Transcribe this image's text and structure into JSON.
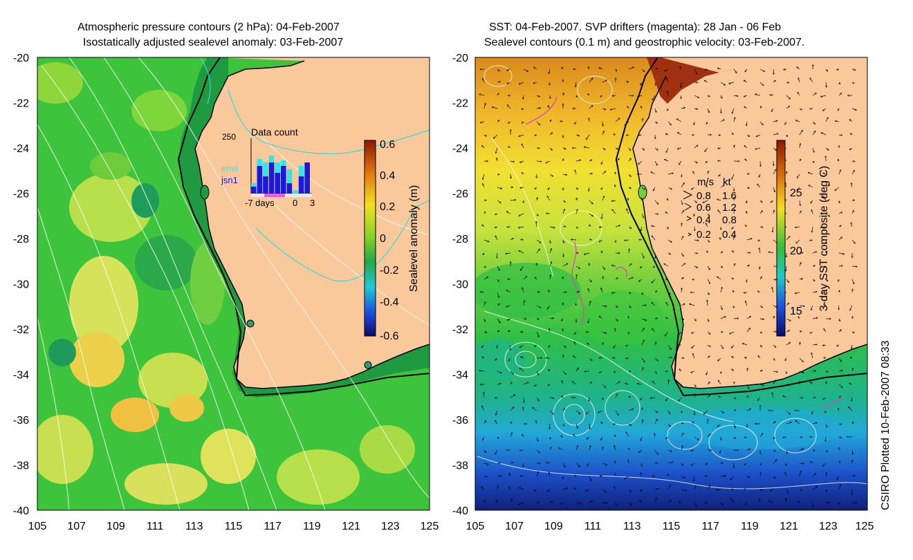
{
  "left_panel": {
    "title_line1": "Atmospheric pressure contours (2 hPa): 04-Feb-2007",
    "title_line2": "Isostatically adjusted sealevel anomaly: 03-Feb-2007",
    "x_ticks": [
      "105",
      "107",
      "109",
      "111",
      "113",
      "115",
      "117",
      "119",
      "121",
      "123",
      "125"
    ],
    "y_ticks": [
      "-20",
      "-22",
      "-24",
      "-26",
      "-28",
      "-30",
      "-32",
      "-34",
      "-36",
      "-38",
      "-40"
    ],
    "colorbar": {
      "label": "Sealevel anomaly (m)",
      "ticks": [
        "0.6",
        "0.4",
        "0.2",
        "0",
        "-0.2",
        "-0.4",
        "-0.6"
      ]
    },
    "inset": {
      "title": "Data count",
      "ymax": "250",
      "legend_envi": "envi",
      "legend_jsn1": "jsn1",
      "x_left": "-7 days",
      "x_mid": "0",
      "x_right": "3",
      "colors": {
        "envi": "#33e6e6",
        "jsn1": "#1a1ad9"
      }
    }
  },
  "right_panel": {
    "title_line1": "SST: 04-Feb-2007. SVP drifters (magenta): 28 Jan - 06 Feb",
    "title_line2": "Sealevel contours (0.1 m) and geostrophic velocity: 03-Feb-2007.",
    "x_ticks": [
      "105",
      "107",
      "109",
      "111",
      "113",
      "115",
      "117",
      "119",
      "121",
      "123",
      "125"
    ],
    "y_ticks": [
      "-20",
      "-22",
      "-24",
      "-26",
      "-28",
      "-30",
      "-32",
      "-34",
      "-36",
      "-38",
      "-40"
    ],
    "colorbar": {
      "label": "3-day SST composite (deg C)",
      "ticks": [
        "25",
        "20",
        "15"
      ]
    },
    "velocity_legend": {
      "header_ms": "m/s",
      "header_kt": "kt",
      "rows": [
        {
          "ms": "0.8",
          "kt": "1.6"
        },
        {
          "ms": "0.6",
          "kt": "1.2"
        },
        {
          "ms": "0.4",
          "kt": "0.8"
        },
        {
          "ms": "0.2",
          "kt": "0.4"
        }
      ]
    }
  },
  "credit": "CSIRO Plotted 10-Feb-2007 08:33",
  "colors": {
    "land": "#f9c89b",
    "sea_green": "#2fbf3c",
    "coast": "#000000"
  }
}
